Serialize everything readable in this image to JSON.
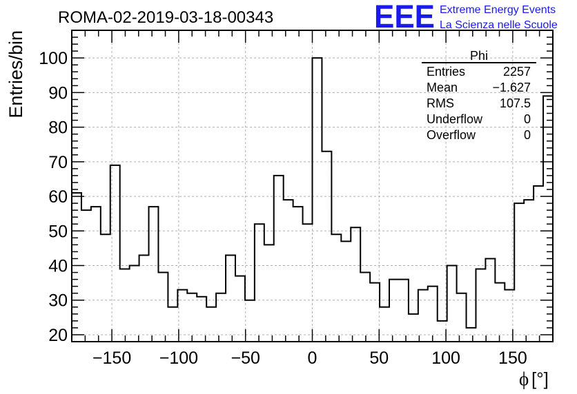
{
  "chart_data": {
    "type": "bar",
    "title": "ROMA-02-2019-03-18-00343",
    "xlabel_symbol": "ϕ",
    "xlabel_unit": "[°]",
    "ylabel": "Entries/bin",
    "xlim": [
      -180,
      180
    ],
    "ylim": [
      18,
      108
    ],
    "bin_width": 7.2,
    "values": [
      61,
      56,
      57,
      49,
      69,
      39,
      40,
      43,
      57,
      38,
      28,
      33,
      32,
      31,
      28,
      32,
      43,
      37,
      30,
      52,
      46,
      66,
      59,
      57,
      52,
      100,
      73,
      49,
      47,
      51,
      38,
      35,
      28,
      36,
      36,
      26,
      33,
      34,
      24,
      40,
      32,
      22,
      39,
      42,
      35,
      33,
      58,
      59,
      63,
      89
    ],
    "x_ticks": [
      -150,
      -100,
      -50,
      0,
      50,
      100,
      150
    ],
    "x_tick_labels": [
      "−150",
      "−100",
      "−50",
      "0",
      "50",
      "100",
      "150"
    ],
    "y_ticks": [
      20,
      30,
      40,
      50,
      60,
      70,
      80,
      90,
      100
    ],
    "y_tick_labels": [
      "20",
      "30",
      "40",
      "50",
      "60",
      "70",
      "80",
      "90",
      "100"
    ],
    "grid": true
  },
  "logo": {
    "text": "EEE",
    "line1": "Extreme Energy Events",
    "line2": "La Scienza nelle Scuole",
    "color": "#1a1aee"
  },
  "stats": {
    "title": "Phi",
    "rows": [
      {
        "label": "Entries",
        "value": "2257"
      },
      {
        "label": "Mean",
        "value": "−1.627"
      },
      {
        "label": "RMS",
        "value": "107.5"
      },
      {
        "label": "Underflow",
        "value": "0"
      },
      {
        "label": "Overflow",
        "value": "0"
      }
    ]
  }
}
